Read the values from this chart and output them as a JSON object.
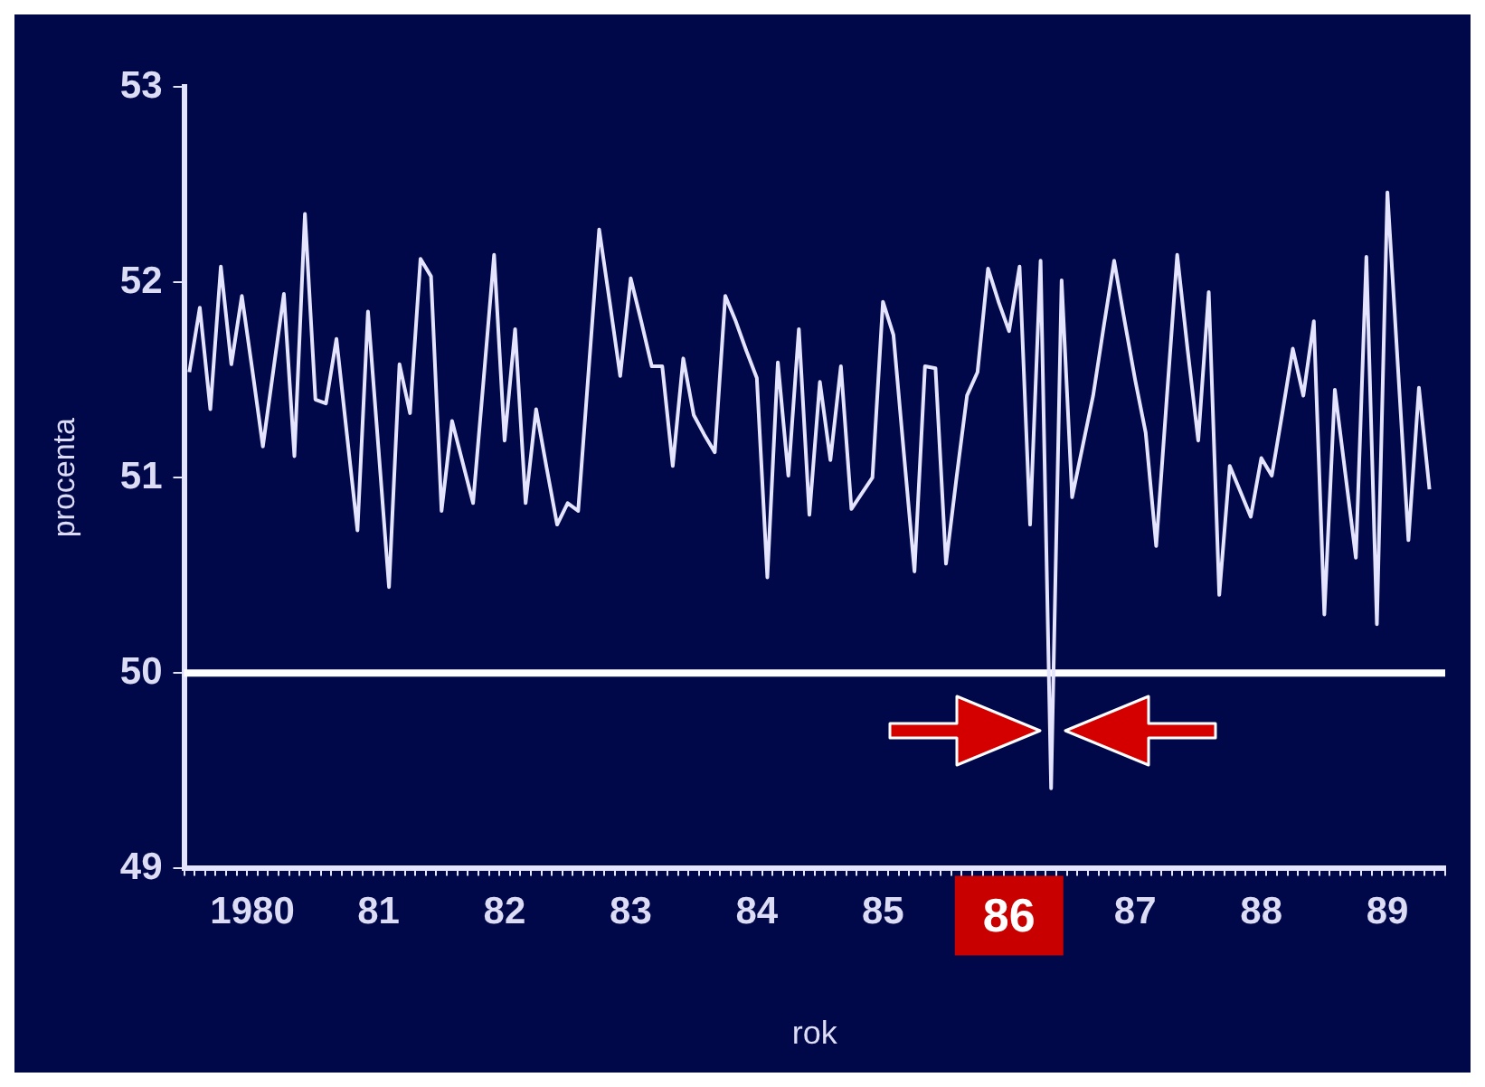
{
  "chart_data": {
    "type": "line",
    "xlabel": "rok",
    "ylabel": "procenta",
    "categories": [
      null,
      null,
      null,
      null,
      null,
      null,
      "1980",
      null,
      null,
      null,
      null,
      null,
      null,
      null,
      null,
      null,
      null,
      null,
      "81",
      null,
      null,
      null,
      null,
      null,
      null,
      null,
      null,
      null,
      null,
      null,
      "82",
      null,
      null,
      null,
      null,
      null,
      null,
      null,
      null,
      null,
      null,
      null,
      "83",
      null,
      null,
      null,
      null,
      null,
      null,
      null,
      null,
      null,
      null,
      null,
      "84",
      null,
      null,
      null,
      null,
      null,
      null,
      null,
      null,
      null,
      null,
      null,
      "85",
      null,
      null,
      null,
      null,
      null,
      null,
      null,
      null,
      null,
      null,
      null,
      "86",
      null,
      null,
      null,
      null,
      null,
      null,
      null,
      null,
      null,
      null,
      null,
      "87",
      null,
      null,
      null,
      null,
      null,
      null,
      null,
      null,
      null,
      null,
      null,
      "88",
      null,
      null,
      null,
      null,
      null,
      null,
      null,
      null,
      null,
      null,
      null,
      "89",
      null,
      null,
      null,
      null,
      null
    ],
    "ylim": [
      49,
      53
    ],
    "yticks": [
      49,
      50,
      51,
      52,
      53
    ],
    "grid": false,
    "legend": false,
    "marker": "none",
    "line_style": "solid",
    "ref_lines": [
      {
        "axis": "y",
        "value": 50,
        "color": "#ffffff"
      }
    ],
    "series": [
      {
        "color": "#e4e4ff",
        "values": [
          51.54,
          51.87,
          51.35,
          52.08,
          51.58,
          51.93,
          51.55,
          51.16,
          51.55,
          51.94,
          51.11,
          52.35,
          51.4,
          51.38,
          51.71,
          51.22,
          50.73,
          51.85,
          51.15,
          50.44,
          51.58,
          51.33,
          52.12,
          52.03,
          50.83,
          51.29,
          51.08,
          50.87,
          51.5,
          52.14,
          51.19,
          51.76,
          50.87,
          51.35,
          51.05,
          50.76,
          50.87,
          50.83,
          51.55,
          52.27,
          51.9,
          51.52,
          52.02,
          51.8,
          51.57,
          51.57,
          51.06,
          51.61,
          51.32,
          51.22,
          51.13,
          51.93,
          51.8,
          51.65,
          51.51,
          50.49,
          51.59,
          51.01,
          51.76,
          50.81,
          51.49,
          51.09,
          51.57,
          50.84,
          50.92,
          51.0,
          51.9,
          51.73,
          51.12,
          50.52,
          51.57,
          51.56,
          50.56,
          51.0,
          51.42,
          51.54,
          52.07,
          51.9,
          51.75,
          52.08,
          50.76,
          52.11,
          49.41,
          52.01,
          50.9,
          51.16,
          51.42,
          51.77,
          52.11,
          51.8,
          51.5,
          51.23,
          50.65,
          51.4,
          52.14,
          51.65,
          51.19,
          51.95,
          50.4,
          51.06,
          50.93,
          50.8,
          51.1,
          51.01,
          51.33,
          51.66,
          51.42,
          51.8,
          50.3,
          51.45,
          51.02,
          50.59,
          52.13,
          50.25,
          52.46,
          51.57,
          50.68,
          51.46,
          50.94,
          null
        ]
      }
    ]
  }
}
